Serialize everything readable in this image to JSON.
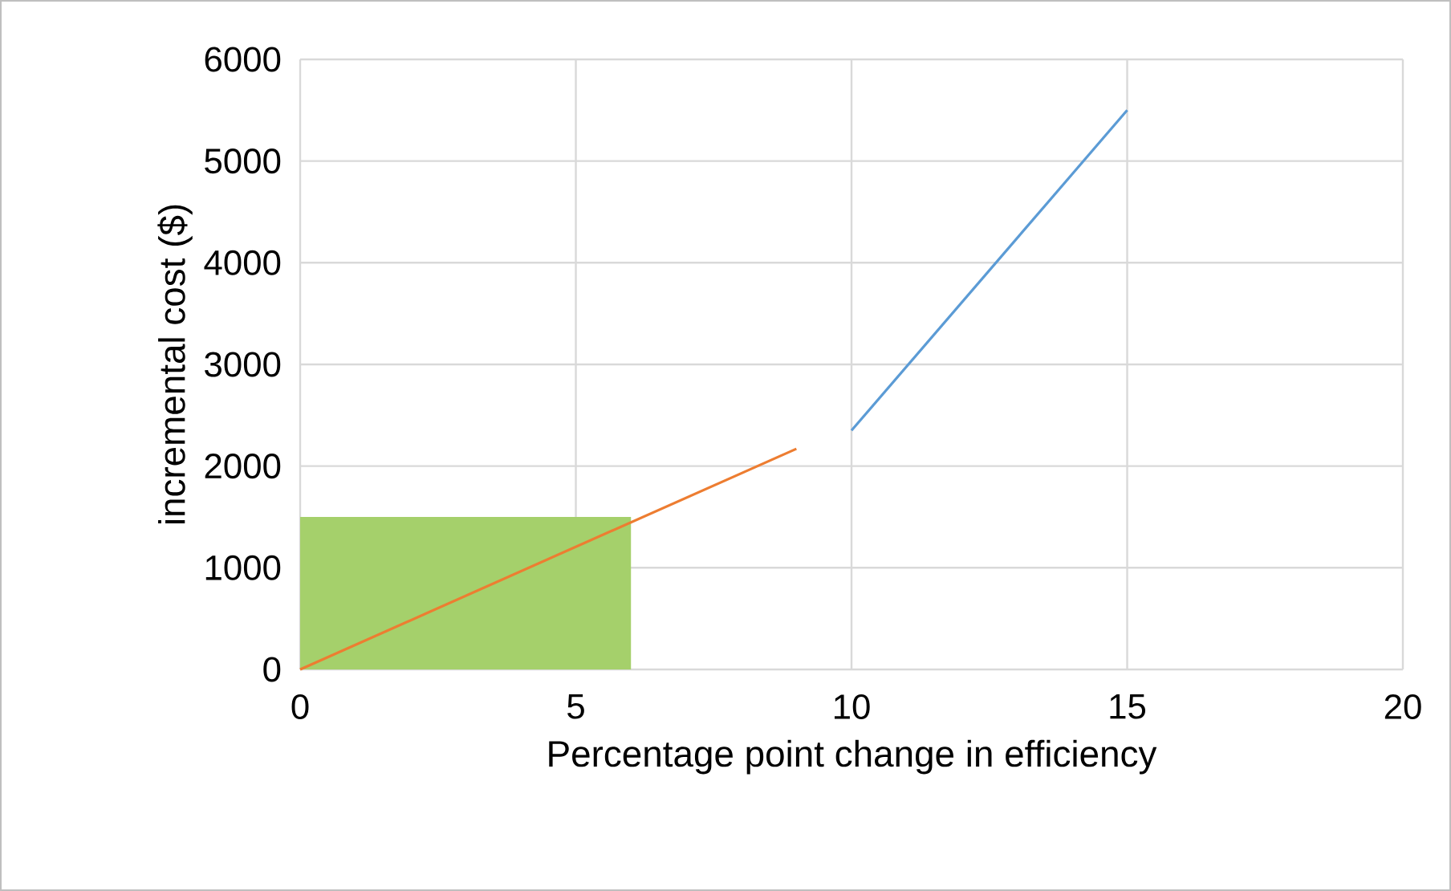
{
  "chart_data": {
    "type": "line",
    "xlabel": "Percentage point change in efficiency",
    "ylabel": "incremental cost ($)",
    "xlim": [
      0,
      20
    ],
    "xticks": [
      0,
      5,
      10,
      15,
      20
    ],
    "ylim": [
      0,
      6000
    ],
    "yticks": [
      0,
      1000,
      2000,
      3000,
      4000,
      5000,
      6000
    ],
    "grid": true,
    "series": [
      {
        "type": "area",
        "color": "#a5d06b",
        "x": [
          0,
          6
        ],
        "values": [
          1500,
          1500
        ]
      },
      {
        "color": "#ed7d31",
        "x": [
          0,
          9
        ],
        "values": [
          0,
          2170
        ]
      },
      {
        "color": "#5b9bd5",
        "x": [
          10,
          15
        ],
        "values": [
          2350,
          5500
        ]
      }
    ]
  }
}
